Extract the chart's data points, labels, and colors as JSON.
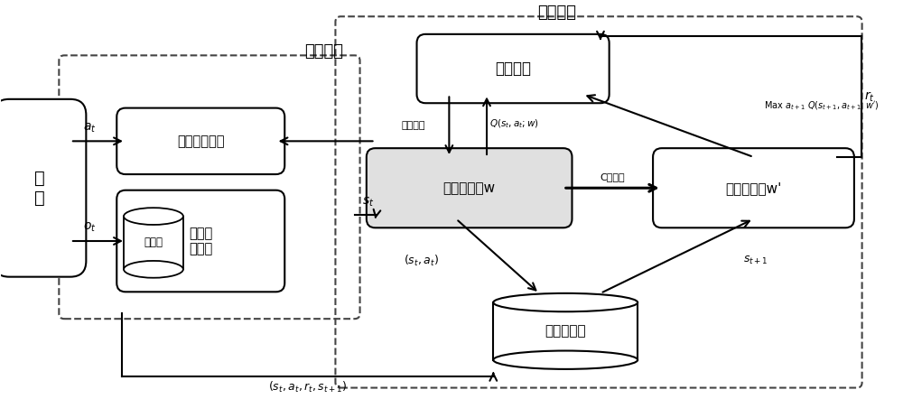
{
  "bg_color": "#ffffff",
  "title_update": "更新模块",
  "title_interact": "交互模块",
  "label_env": "环\n境",
  "label_control": "控制决策模块",
  "label_state": "状态感\n应模块",
  "label_memory_heap": "记忆堆",
  "label_error": "误差模块",
  "label_current": "当前值网络w",
  "label_target": "目标值网络w'",
  "label_replay": "回放记忆池",
  "text_at": "$a_t$",
  "text_ot": "$o_t$",
  "text_st": "$s_t$",
  "text_sa": "$(s_t, a_t)$",
  "text_st1": "$s_{t+1}$",
  "text_sarts": "$(s_t, a_t, r_t, s_{t+1})$",
  "text_gradient": "梯度更新",
  "text_Qw": "$Q(s_t, a_t; w)$",
  "text_C_copy": "C步拷贝",
  "text_MaxQ": "Max $a_{t+1}$ $Q(s_{t+1}, a_{t+1}; w')$",
  "text_rt": "$r_t$"
}
